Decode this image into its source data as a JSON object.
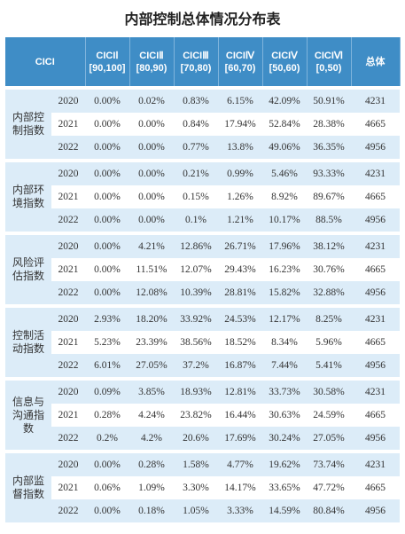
{
  "title": "内部控制总体情况分布表",
  "table": {
    "header": {
      "first": "CICI",
      "columns": [
        {
          "name": "CICIⅠ",
          "range": "[90,100]"
        },
        {
          "name": "CICIⅡ",
          "range": "[80,90)"
        },
        {
          "name": "CICIⅢ",
          "range": "[70,80)"
        },
        {
          "name": "CICIⅣ",
          "range": "[60,70)"
        },
        {
          "name": "CICIⅤ",
          "range": "[50,60)"
        },
        {
          "name": "CICIⅥ",
          "range": "[0,50)"
        }
      ],
      "total": "总体"
    },
    "groups": [
      {
        "label": "内部控制指数",
        "rows": [
          [
            "2020",
            "0.00%",
            "0.02%",
            "0.83%",
            "6.15%",
            "42.09%",
            "50.91%",
            "4231"
          ],
          [
            "2021",
            "0.00%",
            "0.00%",
            "0.84%",
            "17.94%",
            "52.84%",
            "28.38%",
            "4665"
          ],
          [
            "2022",
            "0.00%",
            "0.00%",
            "0.77%",
            "13.8%",
            "49.06%",
            "36.35%",
            "4956"
          ]
        ]
      },
      {
        "label": "内部环境指数",
        "rows": [
          [
            "2020",
            "0.00%",
            "0.00%",
            "0.21%",
            "0.99%",
            "5.46%",
            "93.33%",
            "4231"
          ],
          [
            "2021",
            "0.00%",
            "0.00%",
            "0.15%",
            "1.26%",
            "8.92%",
            "89.67%",
            "4665"
          ],
          [
            "2022",
            "0.00%",
            "0.00%",
            "0.1%",
            "1.21%",
            "10.17%",
            "88.5%",
            "4956"
          ]
        ]
      },
      {
        "label": "风险评估指数",
        "rows": [
          [
            "2020",
            "0.00%",
            "4.21%",
            "12.86%",
            "26.71%",
            "17.96%",
            "38.12%",
            "4231"
          ],
          [
            "2021",
            "0.00%",
            "11.51%",
            "12.07%",
            "29.43%",
            "16.23%",
            "30.76%",
            "4665"
          ],
          [
            "2022",
            "0.00%",
            "12.08%",
            "10.39%",
            "28.81%",
            "15.82%",
            "32.88%",
            "4956"
          ]
        ]
      },
      {
        "label": "控制活动指数",
        "rows": [
          [
            "2020",
            "2.93%",
            "18.20%",
            "33.92%",
            "24.53%",
            "12.17%",
            "8.25%",
            "4231"
          ],
          [
            "2021",
            "5.23%",
            "23.39%",
            "38.56%",
            "18.52%",
            "8.34%",
            "5.96%",
            "4665"
          ],
          [
            "2022",
            "6.01%",
            "27.05%",
            "37.2%",
            "16.87%",
            "7.44%",
            "5.41%",
            "4956"
          ]
        ]
      },
      {
        "label": "信息与沟通指数",
        "rows": [
          [
            "2020",
            "0.09%",
            "3.85%",
            "18.93%",
            "12.81%",
            "33.73%",
            "30.58%",
            "4231"
          ],
          [
            "2021",
            "0.28%",
            "4.24%",
            "23.82%",
            "16.44%",
            "30.63%",
            "24.59%",
            "4665"
          ],
          [
            "2022",
            "0.2%",
            "4.2%",
            "20.6%",
            "17.69%",
            "30.24%",
            "27.05%",
            "4956"
          ]
        ]
      },
      {
        "label": "内部监督指数",
        "rows": [
          [
            "2020",
            "0.00%",
            "0.28%",
            "1.58%",
            "4.77%",
            "19.62%",
            "73.74%",
            "4231"
          ],
          [
            "2021",
            "0.06%",
            "1.09%",
            "3.30%",
            "14.17%",
            "33.65%",
            "47.72%",
            "4665"
          ],
          [
            "2022",
            "0.00%",
            "0.18%",
            "1.05%",
            "3.33%",
            "14.59%",
            "80.84%",
            "4956"
          ]
        ]
      }
    ]
  }
}
